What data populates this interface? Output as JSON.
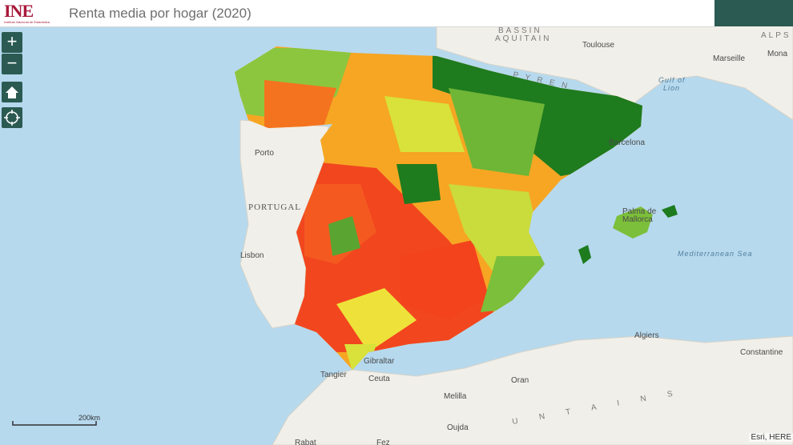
{
  "header": {
    "logo": "INE",
    "logo_subtitle": "Instituto Nacional de Estadística",
    "title": "Renta media por hogar (2020)"
  },
  "controls": {
    "zoom_in": "+",
    "zoom_out": "−"
  },
  "map": {
    "labels": [
      "BASSIN",
      "AQUITAIN",
      "Toulouse",
      "ALPS",
      "Marseille",
      "Mona",
      "P Y R E N",
      "Gulf of",
      "Lion",
      "Barcelona",
      "Porto",
      "PORTUGAL",
      "Lisbon",
      "Palma de",
      "Mallorca",
      "Mediterranean Sea",
      "Algiers",
      "Constantine",
      "Gibraltar",
      "Tangier",
      "Ceuta",
      "Oran",
      "Melilla",
      "Oujda",
      "U N T A I N S",
      "Rabat",
      "Fez"
    ],
    "scale_bar": "200km",
    "attribution": "Esri, HERE"
  }
}
